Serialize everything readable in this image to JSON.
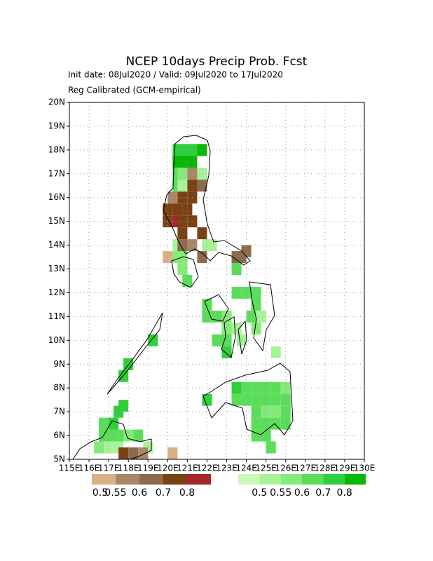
{
  "chart_data": {
    "type": "grid",
    "title": "NCEP 10days Precip Prob. Fcst",
    "subtitle": "Init date: 08Jul2020 / Valid: 09Jul2020 to 17Jul2020",
    "note": "Reg Calibrated (GCM-empirical)",
    "xlim": [
      115,
      130
    ],
    "ylim": [
      5,
      20
    ],
    "xticks": [
      {
        "value": 115,
        "label": "115E"
      },
      {
        "value": 116,
        "label": "116E"
      },
      {
        "value": 117,
        "label": "117E"
      },
      {
        "value": 118,
        "label": "118E"
      },
      {
        "value": 119,
        "label": "119E"
      },
      {
        "value": 120,
        "label": "120E"
      },
      {
        "value": 121,
        "label": "121E"
      },
      {
        "value": 122,
        "label": "122E"
      },
      {
        "value": 123,
        "label": "123E"
      },
      {
        "value": 124,
        "label": "124E"
      },
      {
        "value": 125,
        "label": "125E"
      },
      {
        "value": 126,
        "label": "126E"
      },
      {
        "value": 127,
        "label": "127E"
      },
      {
        "value": 128,
        "label": "128E"
      },
      {
        "value": 129,
        "label": "129E"
      },
      {
        "value": 130,
        "label": "130E"
      }
    ],
    "yticks": [
      {
        "value": 5,
        "label": "5N"
      },
      {
        "value": 6,
        "label": "6N"
      },
      {
        "value": 7,
        "label": "7N"
      },
      {
        "value": 8,
        "label": "8N"
      },
      {
        "value": 9,
        "label": "9N"
      },
      {
        "value": 10,
        "label": "10N"
      },
      {
        "value": 11,
        "label": "11N"
      },
      {
        "value": 12,
        "label": "12N"
      },
      {
        "value": 13,
        "label": "13N"
      },
      {
        "value": 14,
        "label": "14N"
      },
      {
        "value": 15,
        "label": "15N"
      },
      {
        "value": 16,
        "label": "16N"
      },
      {
        "value": 17,
        "label": "17N"
      },
      {
        "value": 18,
        "label": "18N"
      },
      {
        "value": 19,
        "label": "19N"
      },
      {
        "value": 20,
        "label": "20N"
      }
    ],
    "grid": true,
    "legend": {
      "dry": {
        "colors": [
          "#d8b084",
          "#a8866a",
          "#8c6a4c",
          "#7a4214",
          "#a4282c"
        ],
        "labels": [
          0.5,
          0.55,
          0.6,
          0.7,
          0.8
        ]
      },
      "wet": {
        "colors": [
          "#ccf8b8",
          "#a8f29a",
          "#86ea7a",
          "#5ade5a",
          "#2ecf3a",
          "#08b808"
        ],
        "labels": [
          0.5,
          0.55,
          0.6,
          0.7,
          0.8
        ]
      }
    },
    "wet_cells": [
      [
        120.25,
        17.75,
        0.7
      ],
      [
        120.5,
        17.75,
        0.7
      ],
      [
        120.75,
        17.75,
        0.7
      ],
      [
        121.0,
        17.75,
        0.7
      ],
      [
        121.25,
        17.75,
        0.7
      ],
      [
        121.5,
        17.75,
        0.8
      ],
      [
        120.25,
        17.25,
        0.8
      ],
      [
        120.5,
        17.25,
        0.8
      ],
      [
        120.75,
        17.25,
        0.8
      ],
      [
        121.0,
        17.25,
        0.8
      ],
      [
        120.25,
        16.75,
        0.6
      ],
      [
        120.5,
        16.75,
        0.55
      ],
      [
        121.5,
        16.75,
        0.5
      ],
      [
        120.25,
        16.25,
        0.6
      ],
      [
        120.5,
        16.25,
        0.5
      ],
      [
        120.25,
        13.75,
        0.5
      ],
      [
        121.75,
        13.75,
        0.5
      ],
      [
        122.0,
        13.75,
        0.5
      ],
      [
        120.25,
        13.25,
        0.55
      ],
      [
        120.5,
        13.25,
        0.55
      ],
      [
        123.25,
        12.75,
        0.6
      ],
      [
        120.5,
        12.75,
        0.55
      ],
      [
        120.75,
        12.25,
        0.6
      ],
      [
        123.25,
        11.75,
        0.6
      ],
      [
        123.75,
        11.75,
        0.6
      ],
      [
        124.25,
        11.75,
        0.6
      ],
      [
        121.75,
        11.25,
        0.6
      ],
      [
        124.25,
        11.25,
        0.6
      ],
      [
        124.0,
        10.75,
        0.6
      ],
      [
        121.75,
        10.75,
        0.6
      ],
      [
        122.25,
        10.75,
        0.6
      ],
      [
        122.75,
        10.75,
        0.55
      ],
      [
        124.5,
        10.75,
        0.5
      ],
      [
        122.75,
        10.25,
        0.55
      ],
      [
        123.25,
        10.25,
        0.5
      ],
      [
        124.25,
        10.25,
        0.55
      ],
      [
        122.25,
        9.75,
        0.6
      ],
      [
        122.75,
        9.75,
        0.6
      ],
      [
        123.5,
        9.75,
        0.5
      ],
      [
        122.75,
        9.25,
        0.7
      ],
      [
        125.25,
        9.25,
        0.5
      ],
      [
        123.25,
        7.75,
        0.7
      ],
      [
        123.75,
        7.75,
        0.6
      ],
      [
        124.25,
        7.75,
        0.6
      ],
      [
        124.75,
        7.75,
        0.6
      ],
      [
        125.25,
        7.75,
        0.6
      ],
      [
        125.75,
        7.75,
        0.55
      ],
      [
        121.75,
        7.25,
        0.7
      ],
      [
        123.25,
        7.25,
        0.6
      ],
      [
        123.75,
        7.25,
        0.6
      ],
      [
        124.25,
        7.25,
        0.6
      ],
      [
        124.75,
        7.25,
        0.6
      ],
      [
        125.25,
        7.25,
        0.6
      ],
      [
        125.75,
        7.25,
        0.6
      ],
      [
        124.25,
        6.75,
        0.6
      ],
      [
        124.75,
        6.75,
        0.55
      ],
      [
        125.25,
        6.75,
        0.55
      ],
      [
        125.75,
        6.75,
        0.6
      ],
      [
        124.25,
        6.25,
        0.6
      ],
      [
        124.75,
        6.25,
        0.6
      ],
      [
        125.25,
        6.25,
        0.6
      ],
      [
        125.75,
        6.25,
        0.6
      ],
      [
        124.25,
        5.75,
        0.6
      ],
      [
        124.75,
        5.75,
        0.6
      ],
      [
        125.0,
        5.25,
        0.6
      ],
      [
        117.25,
        6.75,
        0.7
      ],
      [
        117.5,
        7.0,
        0.7
      ],
      [
        117.0,
        6.25,
        0.7
      ],
      [
        116.5,
        6.25,
        0.6
      ],
      [
        116.5,
        5.75,
        0.6
      ],
      [
        117.0,
        5.75,
        0.6
      ],
      [
        117.5,
        5.75,
        0.6
      ],
      [
        117.75,
        5.75,
        0.55
      ],
      [
        118.25,
        5.75,
        0.6
      ],
      [
        116.25,
        5.25,
        0.55
      ],
      [
        116.75,
        5.25,
        0.5
      ],
      [
        117.25,
        5.25,
        0.5
      ],
      [
        118.75,
        5.25,
        0.5
      ],
      [
        117.5,
        8.25,
        0.7
      ],
      [
        117.75,
        8.75,
        0.7
      ],
      [
        119.0,
        9.75,
        0.7
      ]
    ],
    "dry_cells": [
      [
        121.0,
        16.75,
        0.55
      ],
      [
        121.5,
        16.25,
        0.6
      ],
      [
        121.0,
        16.25,
        0.7
      ],
      [
        120.0,
        15.75,
        0.55
      ],
      [
        120.5,
        15.75,
        0.7
      ],
      [
        121.0,
        15.75,
        0.7
      ],
      [
        119.75,
        15.25,
        0.7
      ],
      [
        120.25,
        15.25,
        0.7
      ],
      [
        120.75,
        15.25,
        0.7
      ],
      [
        119.75,
        14.75,
        0.7
      ],
      [
        120.25,
        14.75,
        0.8
      ],
      [
        120.5,
        14.75,
        0.7
      ],
      [
        121.0,
        14.75,
        0.7
      ],
      [
        120.5,
        14.25,
        0.7
      ],
      [
        121.5,
        14.25,
        0.7
      ],
      [
        120.5,
        13.75,
        0.6
      ],
      [
        121.0,
        13.75,
        0.55
      ],
      [
        121.5,
        13.25,
        0.6
      ],
      [
        119.75,
        13.25,
        0.5
      ],
      [
        123.25,
        13.25,
        0.6
      ],
      [
        123.5,
        13.25,
        0.6
      ],
      [
        123.75,
        13.5,
        0.6
      ],
      [
        118.0,
        5.0,
        0.6
      ],
      [
        118.5,
        5.0,
        0.55
      ],
      [
        117.5,
        5.0,
        0.7
      ],
      [
        120.0,
        5.0,
        0.5
      ]
    ]
  }
}
